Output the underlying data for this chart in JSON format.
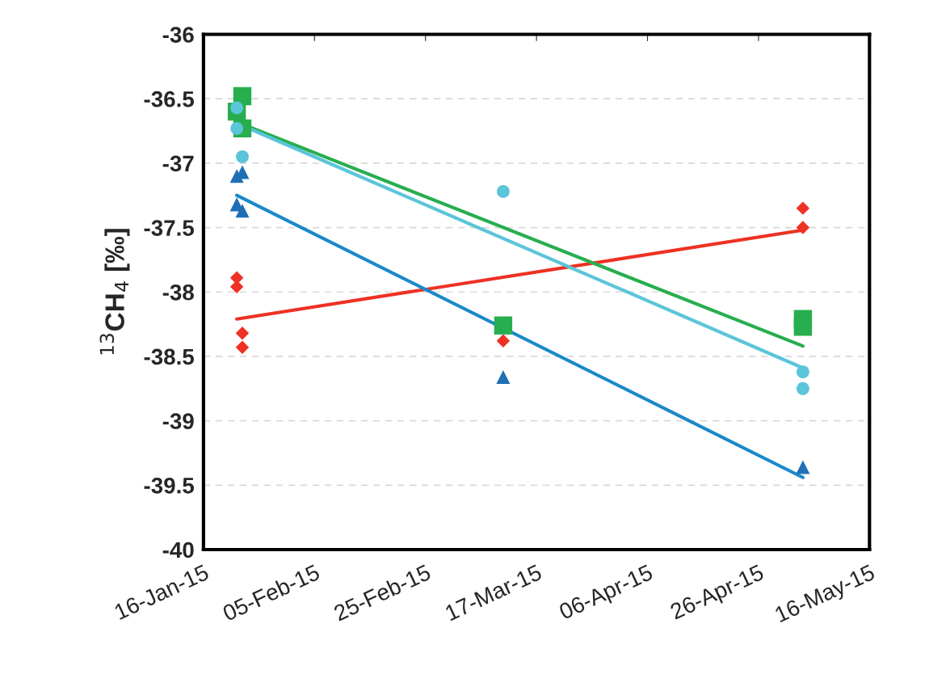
{
  "chart_data": {
    "type": "scatter",
    "ylabel": "$^{13}$CH$_{4}$ [‰]",
    "xlim": [
      "2015-01-16",
      "2015-05-16"
    ],
    "xticks": [
      {
        "value": "2015-01-16",
        "label": "16-Jan-15"
      },
      {
        "value": "2015-02-05",
        "label": "05-Feb-15"
      },
      {
        "value": "2015-02-25",
        "label": "25-Feb-15"
      },
      {
        "value": "2015-03-17",
        "label": "17-Mar-15"
      },
      {
        "value": "2015-04-06",
        "label": "06-Apr-15"
      },
      {
        "value": "2015-04-26",
        "label": "26-Apr-15"
      },
      {
        "value": "2015-05-16",
        "label": "16-May-15"
      }
    ],
    "ylim": [
      -40,
      -36
    ],
    "yticks": [
      -40,
      -39.5,
      -39,
      -38.5,
      -38,
      -37.5,
      -37,
      -36.5,
      -36
    ],
    "grid": "y",
    "legend": false,
    "series": [
      {
        "type": "line",
        "color": "#ee3124",
        "marker": "none",
        "line_style": "solid",
        "x": [
          "2015-01-22",
          "2015-05-04"
        ],
        "values": [
          -38.21,
          -37.52
        ]
      },
      {
        "type": "line",
        "color": "#1a88cc",
        "marker": "none",
        "line_style": "solid",
        "x": [
          "2015-01-22",
          "2015-05-04"
        ],
        "values": [
          -37.25,
          -39.44
        ]
      },
      {
        "type": "line",
        "color": "#27ae4f",
        "marker": "none",
        "line_style": "solid",
        "x": [
          "2015-01-22",
          "2015-05-04"
        ],
        "values": [
          -36.68,
          -38.42
        ]
      },
      {
        "type": "line",
        "color": "#5bc5d9",
        "marker": "none",
        "line_style": "solid",
        "x": [
          "2015-01-22",
          "2015-05-04"
        ],
        "values": [
          -36.69,
          -38.59
        ]
      },
      {
        "color": "#27ae4f",
        "marker": "square",
        "x": [
          "2015-01-22",
          "2015-01-23",
          "2015-01-23",
          "2015-03-11",
          "2015-05-04",
          "2015-05-04"
        ],
        "values": [
          -36.6,
          -36.48,
          -36.73,
          -38.26,
          -38.21,
          -38.27
        ]
      },
      {
        "color": "#5bc5d9",
        "marker": "circle",
        "x": [
          "2015-01-22",
          "2015-01-22",
          "2015-01-23",
          "2015-03-11",
          "2015-05-04",
          "2015-05-04"
        ],
        "values": [
          -36.57,
          -36.73,
          -36.95,
          -37.22,
          -38.62,
          -38.75
        ]
      },
      {
        "color": "#1f6fb5",
        "marker": "triangle",
        "x": [
          "2015-01-22",
          "2015-01-23",
          "2015-01-22",
          "2015-01-23",
          "2015-03-11",
          "2015-05-04"
        ],
        "values": [
          -37.1,
          -37.07,
          -37.32,
          -37.37,
          -38.66,
          -39.36
        ]
      },
      {
        "color": "#ee3124",
        "marker": "diamond",
        "x": [
          "2015-01-22",
          "2015-01-22",
          "2015-01-23",
          "2015-01-23",
          "2015-03-11",
          "2015-05-04",
          "2015-05-04"
        ],
        "values": [
          -37.89,
          -37.96,
          -38.32,
          -38.43,
          -38.38,
          -37.35,
          -37.5
        ]
      }
    ]
  }
}
